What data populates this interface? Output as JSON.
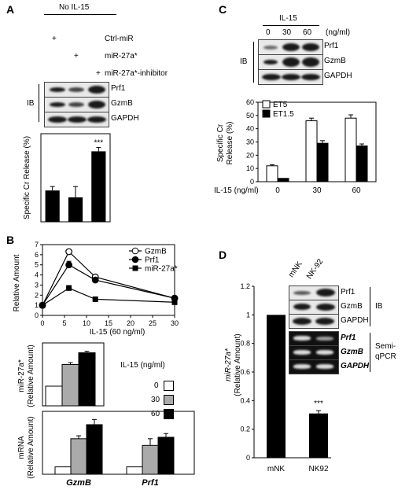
{
  "panelA": {
    "label": "A",
    "condition": "No IL-15",
    "plus": "+",
    "rows": [
      "Ctrl-miR",
      "miR-27a*",
      "miR-27a*-inhibitor"
    ],
    "ib": "IB",
    "blots": [
      "Prf1",
      "GzmB",
      "GAPDH"
    ],
    "ylabel": "Specific Cr Release (%)",
    "sig": "***"
  },
  "panelB": {
    "label": "B",
    "line_xlabel": "IL-15 (60 ng/ml)",
    "line_ylabel": "Relative Amount",
    "legend_title": "IL-15 (ng/ml)",
    "legend_items": [
      "0",
      "30",
      "60"
    ],
    "mid_ylabel_1": "miR-27a*",
    "mid_ylabel_2": "(Relative Amount)",
    "bot_ylabel_1": "mRNA",
    "bot_ylabel_2": "(Relative Amount)"
  },
  "panelC": {
    "label": "C",
    "il15_title": "IL-15",
    "unit": "(ng/ml)",
    "conc": [
      "0",
      "30",
      "60"
    ],
    "ib": "IB",
    "blots": [
      "Prf1",
      "GzmB",
      "GAPDH"
    ],
    "ylabel_1": "Specific Cr",
    "ylabel_2": "Release (%)",
    "xlabel": "IL-15 (ng/ml)"
  },
  "panelD": {
    "label": "D",
    "lanes": [
      "mNK",
      "NK-92"
    ],
    "ib_blots": [
      "Prf1",
      "GzmB",
      "GAPDH"
    ],
    "pcr_blots": [
      "Prf1",
      "GzmB",
      "GAPDH"
    ],
    "ib": "IB",
    "semi_1": "Semi-",
    "semi_2": "qPCR",
    "ylabel_1": "miR-27a*",
    "ylabel_2": "(Relative Amount)",
    "sig": "***"
  },
  "chart_data": [
    {
      "id": "A-bar",
      "type": "bar",
      "categories": [
        "Ctrl-miR",
        "miR-27a*",
        "miR-27a*-inhibitor"
      ],
      "values": [
        3.2,
        2.5,
        7.2
      ],
      "errors": [
        0.4,
        1.1,
        0.4
      ],
      "ylabel": "Specific Cr Release (%)",
      "ylim": [
        0,
        9
      ],
      "colors": [
        "#000000"
      ]
    },
    {
      "id": "B-line",
      "type": "line",
      "x": [
        0,
        6,
        12,
        30
      ],
      "xticks": [
        0,
        5,
        10,
        15,
        20,
        25,
        30
      ],
      "xlim": [
        0,
        30
      ],
      "yticks": [
        0,
        1,
        2,
        3,
        4,
        5,
        6,
        7
      ],
      "ylim": [
        0,
        7
      ],
      "xlabel": "IL-15 (60 ng/ml)",
      "ylabel": "Relative Amount",
      "series": [
        {
          "name": "GzmB",
          "marker": "open-circle",
          "values": [
            1,
            6.3,
            3.8,
            1.7
          ]
        },
        {
          "name": "Prf1",
          "marker": "filled-circle",
          "values": [
            1,
            5.0,
            3.5,
            1.7
          ]
        },
        {
          "name": "miR-27a*",
          "marker": "filled-square",
          "values": [
            1,
            2.7,
            1.6,
            1.3
          ]
        }
      ]
    },
    {
      "id": "B-mir",
      "type": "bar",
      "categories": [
        "0",
        "30",
        "60"
      ],
      "values": [
        1.0,
        2.1,
        2.7
      ],
      "errors": [
        0,
        0.1,
        0.08
      ],
      "ylim": [
        0,
        3.2
      ],
      "colors": [
        "#ffffff",
        "#aaaaaa",
        "#000000"
      ]
    },
    {
      "id": "B-mrna",
      "type": "bar",
      "categories": [
        "GzmB",
        "Prf1"
      ],
      "series": [
        {
          "name": "0",
          "values": [
            1.0,
            1.0
          ],
          "errors": [
            0,
            0
          ]
        },
        {
          "name": "30",
          "values": [
            4.8,
            3.9
          ],
          "errors": [
            0.4,
            0.9
          ]
        },
        {
          "name": "60",
          "values": [
            6.7,
            5.0
          ],
          "errors": [
            0.7,
            0.5
          ]
        }
      ],
      "ylim": [
        0,
        8.5
      ],
      "colors": [
        "#ffffff",
        "#aaaaaa",
        "#000000"
      ]
    },
    {
      "id": "C-bar",
      "type": "bar",
      "categories": [
        "0",
        "30",
        "60"
      ],
      "series": [
        {
          "name": "ET5",
          "values": [
            12,
            46,
            48
          ],
          "errors": [
            0.8,
            2,
            2.5
          ]
        },
        {
          "name": "ET1.5",
          "values": [
            2.5,
            29,
            27
          ],
          "errors": [
            0,
            2,
            1.5
          ]
        }
      ],
      "yticks": [
        0,
        10,
        20,
        30,
        40,
        50,
        60
      ],
      "ylim": [
        0,
        60
      ],
      "xlabel": "IL-15 (ng/ml)",
      "ylabel": "Specific Cr Release (%)",
      "colors": [
        "#ffffff",
        "#000000"
      ]
    },
    {
      "id": "D-bar",
      "type": "bar",
      "categories": [
        "mNK",
        "NK92"
      ],
      "values": [
        1.0,
        0.31
      ],
      "errors": [
        0,
        0.02
      ],
      "yticks": [
        0,
        0.2,
        0.4,
        0.6,
        0.8,
        1,
        1.2
      ],
      "ylim": [
        0,
        1.2
      ],
      "ylabel": "miR-27a* (Relative Amount)",
      "colors": [
        "#000000"
      ]
    }
  ]
}
